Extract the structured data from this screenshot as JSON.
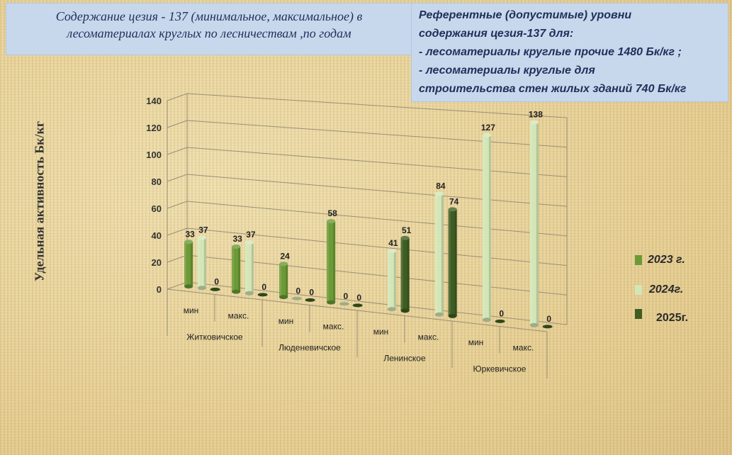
{
  "header": {
    "title_line1": "Содержание цезия - 137 (минимальное, максимальное) в",
    "title_line2": "лесоматериалах круглых  по лесничествам ,по годам"
  },
  "reference": {
    "line1": "Референтные (допустимые) уровни",
    "line2": "содержания цезия-137 для:",
    "line3": "- лесоматериалы круглые прочие 1480 Бк/кг  ;",
    "line4": "- лесоматериалы круглые для",
    "line5": "строительства стен жилых зданий 740 Бк/кг"
  },
  "colors": {
    "series_2023": "#6b9a36",
    "series_2024": "#d3e6b6",
    "series_2025": "#3e5d22"
  },
  "chart_data": {
    "type": "bar",
    "ylabel": "Удельная активность Бк/кг",
    "ylim": [
      0,
      140
    ],
    "yticks": [
      0,
      20,
      40,
      60,
      80,
      100,
      120,
      140
    ],
    "grid": true,
    "legend_position": "right",
    "groups": [
      "Житковичское",
      "Люденевичское",
      "Ленинское",
      "Юркевичское"
    ],
    "categories": [
      "мин",
      "макс.",
      "мин",
      "макс.",
      "мин",
      "макс.",
      "мин",
      "макс."
    ],
    "series": [
      {
        "name": "2023 г.",
        "values": [
          33,
          33,
          24,
          58,
          null,
          null,
          null,
          null
        ]
      },
      {
        "name": "2024г.",
        "values": [
          37,
          37,
          0,
          0,
          41,
          84,
          127,
          138
        ]
      },
      {
        "name": "2025г.",
        "values": [
          0,
          0,
          0,
          0,
          51,
          74,
          0,
          0
        ]
      }
    ]
  }
}
